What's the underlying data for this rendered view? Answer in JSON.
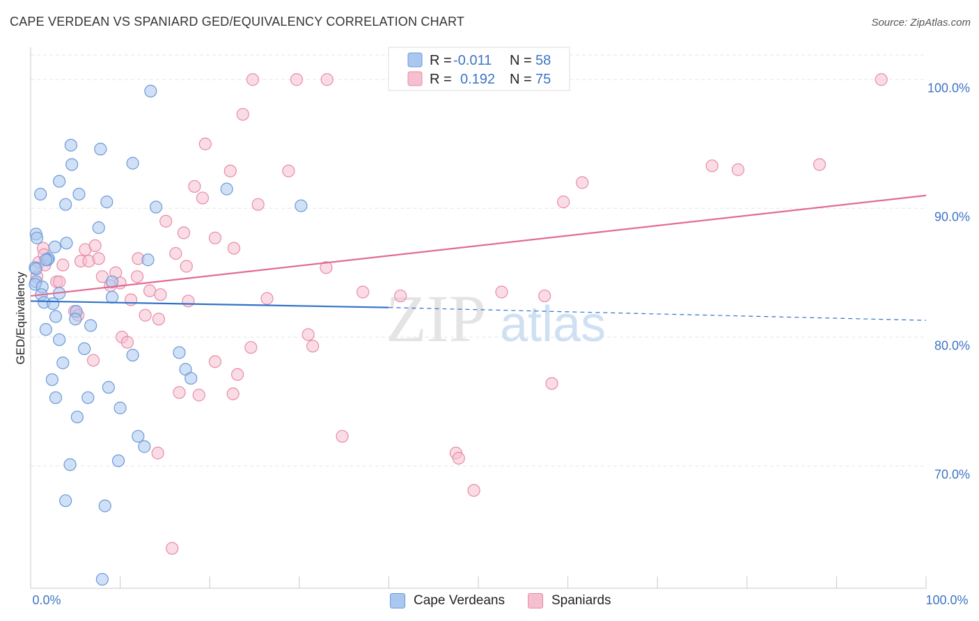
{
  "header": {
    "title": "CAPE VERDEAN VS SPANIARD GED/EQUIVALENCY CORRELATION CHART",
    "source": "Source: ZipAtlas.com"
  },
  "watermark": {
    "zip": "ZIP",
    "atlas": "atlas"
  },
  "colors": {
    "blue_fill": "#a9c7ef",
    "blue_stroke": "#6a9ad8",
    "blue_line": "#2f72c8",
    "pink_fill": "#f6bfd0",
    "pink_stroke": "#e98aa8",
    "pink_line": "#e36a93",
    "tick_text": "#3d74c4",
    "grid": "#e6e6e6"
  },
  "legend": {
    "rows": [
      {
        "r_label": "R =",
        "r_value": "-0.011",
        "n_label": "N =",
        "n_value": "58"
      },
      {
        "r_label": "R =",
        "r_value": "0.192",
        "n_label": "N =",
        "n_value": "75"
      }
    ]
  },
  "bottom_legend": {
    "items": [
      "Cape Verdeans",
      "Spaniards"
    ]
  },
  "chart_data": {
    "type": "scatter",
    "title": "CAPE VERDEAN VS SPANIARD GED/EQUIVALENCY CORRELATION CHART",
    "ylabel": "GED/Equivalency",
    "xlabel": "",
    "xlim": [
      0,
      100
    ],
    "ylim": [
      60.5,
      102.5
    ],
    "x_tick_labels": [
      "0.0%",
      "100.0%"
    ],
    "y_ticks": [
      70,
      80,
      90,
      100
    ],
    "y_tick_labels": [
      "70.0%",
      "80.0%",
      "90.0%",
      "100.0%"
    ],
    "grid": true,
    "legend_position": "top-center",
    "series": [
      {
        "name": "Cape Verdeans",
        "r": -0.011,
        "n": 58,
        "trend": {
          "x": [
            0,
            40,
            100
          ],
          "y": [
            82.8,
            82.3,
            81.3
          ],
          "solid_until_x": 40
        },
        "points": [
          [
            13.4,
            99.1
          ],
          [
            4.5,
            94.9
          ],
          [
            7.8,
            94.6
          ],
          [
            4.6,
            93.4
          ],
          [
            11.4,
            93.5
          ],
          [
            3.2,
            92.1
          ],
          [
            1.1,
            91.1
          ],
          [
            5.4,
            91.1
          ],
          [
            21.9,
            91.5
          ],
          [
            3.9,
            90.3
          ],
          [
            8.5,
            90.5
          ],
          [
            14.0,
            90.1
          ],
          [
            30.2,
            90.2
          ],
          [
            7.6,
            88.5
          ],
          [
            0.6,
            88.0
          ],
          [
            0.7,
            87.7
          ],
          [
            4.0,
            87.3
          ],
          [
            2.7,
            87.0
          ],
          [
            2.0,
            86.1
          ],
          [
            1.9,
            86.0
          ],
          [
            13.1,
            86.0
          ],
          [
            0.5,
            85.4
          ],
          [
            0.6,
            85.3
          ],
          [
            0.6,
            84.3
          ],
          [
            0.5,
            84.1
          ],
          [
            1.3,
            83.9
          ],
          [
            9.1,
            84.3
          ],
          [
            3.2,
            83.4
          ],
          [
            1.2,
            83.3
          ],
          [
            9.1,
            83.1
          ],
          [
            1.5,
            82.7
          ],
          [
            2.5,
            82.6
          ],
          [
            5.1,
            82.0
          ],
          [
            2.8,
            81.6
          ],
          [
            5.0,
            81.4
          ],
          [
            6.7,
            80.9
          ],
          [
            1.7,
            80.6
          ],
          [
            3.2,
            79.8
          ],
          [
            6.0,
            79.1
          ],
          [
            11.4,
            78.6
          ],
          [
            16.6,
            78.8
          ],
          [
            3.6,
            78.0
          ],
          [
            17.3,
            77.5
          ],
          [
            17.9,
            76.8
          ],
          [
            2.4,
            76.7
          ],
          [
            8.7,
            76.1
          ],
          [
            2.8,
            75.3
          ],
          [
            6.4,
            75.3
          ],
          [
            10.0,
            74.5
          ],
          [
            5.2,
            73.8
          ],
          [
            12.0,
            72.3
          ],
          [
            12.7,
            71.5
          ],
          [
            9.8,
            70.4
          ],
          [
            4.4,
            70.1
          ],
          [
            3.9,
            67.3
          ],
          [
            8.3,
            66.9
          ],
          [
            8.0,
            61.2
          ],
          [
            1.7,
            86.0
          ]
        ]
      },
      {
        "name": "Spaniards",
        "r": 0.192,
        "n": 75,
        "trend": {
          "x": [
            0,
            100
          ],
          "y": [
            83.2,
            91.0
          ]
        },
        "points": [
          [
            24.8,
            100.0
          ],
          [
            29.7,
            100.0
          ],
          [
            33.1,
            100.0
          ],
          [
            40.9,
            100.0
          ],
          [
            49.7,
            100.0
          ],
          [
            95.0,
            100.0
          ],
          [
            23.7,
            97.3
          ],
          [
            19.5,
            95.0
          ],
          [
            59.5,
            90.5
          ],
          [
            28.8,
            92.9
          ],
          [
            18.3,
            91.7
          ],
          [
            22.3,
            92.9
          ],
          [
            76.1,
            93.3
          ],
          [
            79.0,
            93.0
          ],
          [
            61.6,
            92.0
          ],
          [
            88.1,
            93.4
          ],
          [
            19.2,
            90.8
          ],
          [
            25.4,
            90.3
          ],
          [
            15.1,
            89.0
          ],
          [
            17.1,
            88.1
          ],
          [
            20.6,
            87.7
          ],
          [
            1.4,
            86.9
          ],
          [
            6.1,
            86.8
          ],
          [
            7.2,
            87.1
          ],
          [
            16.2,
            86.5
          ],
          [
            22.7,
            86.9
          ],
          [
            0.9,
            85.8
          ],
          [
            1.6,
            85.6
          ],
          [
            3.6,
            85.6
          ],
          [
            5.6,
            85.9
          ],
          [
            6.5,
            85.9
          ],
          [
            7.6,
            86.1
          ],
          [
            12.0,
            86.1
          ],
          [
            17.4,
            85.5
          ],
          [
            33.0,
            85.4
          ],
          [
            0.7,
            84.7
          ],
          [
            2.9,
            84.3
          ],
          [
            3.2,
            84.3
          ],
          [
            8.0,
            84.7
          ],
          [
            9.5,
            85.0
          ],
          [
            10.0,
            84.2
          ],
          [
            11.9,
            84.7
          ],
          [
            8.9,
            84.0
          ],
          [
            13.3,
            83.6
          ],
          [
            14.5,
            83.3
          ],
          [
            11.2,
            82.9
          ],
          [
            17.6,
            82.8
          ],
          [
            26.4,
            83.0
          ],
          [
            37.1,
            83.5
          ],
          [
            41.3,
            83.2
          ],
          [
            52.6,
            83.5
          ],
          [
            57.4,
            83.2
          ],
          [
            4.9,
            82.0
          ],
          [
            5.3,
            81.7
          ],
          [
            12.8,
            81.7
          ],
          [
            14.3,
            81.4
          ],
          [
            10.2,
            80.0
          ],
          [
            10.8,
            79.6
          ],
          [
            31.0,
            80.2
          ],
          [
            31.5,
            79.3
          ],
          [
            24.6,
            79.2
          ],
          [
            7.0,
            78.2
          ],
          [
            20.6,
            78.1
          ],
          [
            23.1,
            77.1
          ],
          [
            58.2,
            76.4
          ],
          [
            16.6,
            75.7
          ],
          [
            18.8,
            75.5
          ],
          [
            22.6,
            75.6
          ],
          [
            34.8,
            72.3
          ],
          [
            14.2,
            71.0
          ],
          [
            47.5,
            71.0
          ],
          [
            47.8,
            70.6
          ],
          [
            49.5,
            68.1
          ],
          [
            15.8,
            63.6
          ],
          [
            1.5,
            86.4
          ]
        ]
      }
    ]
  }
}
